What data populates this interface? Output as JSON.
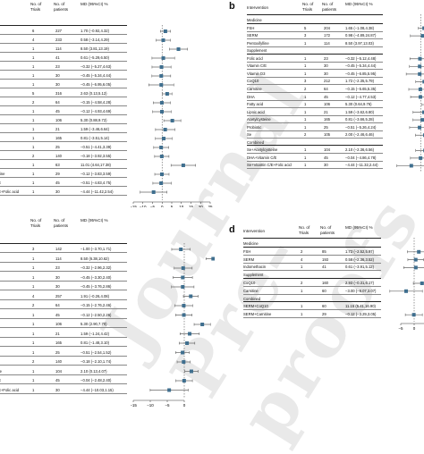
{
  "watermark": "Journal Pre-proofs",
  "panels": [
    {
      "letter": "",
      "headers": {
        "intervention": "",
        "trials": "No. of Trials",
        "patients": "No. of patients",
        "md": "MD (95%CI) %"
      },
      "rows": [
        {
          "name": "",
          "trials": "6",
          "patients": "227",
          "md": "1.70 (−0.92,4.32)",
          "est": 1.7,
          "lo": -0.92,
          "hi": 4.32
        },
        {
          "name": "",
          "trials": "4",
          "patients": "233",
          "md": "0.58 (−3.14,4.29)",
          "est": 0.58,
          "lo": -3.14,
          "hi": 4.29
        },
        {
          "name": "e",
          "trials": "1",
          "patients": "114",
          "md": "8.50 (3.81,13.19)",
          "est": 8.5,
          "lo": 3.81,
          "hi": 13.19
        },
        {
          "name": "m",
          "trials": "1",
          "patients": "41",
          "md": "0.61 (−5.29,6.50)",
          "est": 0.61,
          "lo": -5.29,
          "hi": 6.5
        },
        {
          "name": "",
          "trials": "1",
          "patients": "23",
          "md": "−0.32 (−5.27,4.63)",
          "est": -0.32,
          "lo": -5.27,
          "hi": 4.63
        },
        {
          "name": "",
          "trials": "1",
          "patients": "30",
          "md": "−0.45 (−5.34,4.44)",
          "est": -0.45,
          "lo": -5.34,
          "hi": 4.44
        },
        {
          "name": "",
          "trials": "1",
          "patients": "30",
          "md": "−0.45 (−6.95,6.05)",
          "est": -0.45,
          "lo": -6.95,
          "hi": 6.05
        },
        {
          "name": "",
          "trials": "5",
          "patients": "316",
          "md": "2.63 (0.13,5.12)",
          "est": 2.63,
          "lo": 0.13,
          "hi": 5.12
        },
        {
          "name": "",
          "trials": "2",
          "patients": "64",
          "md": "−0.15 (−4.58,4.28)",
          "est": -0.15,
          "lo": -4.58,
          "hi": 4.28
        },
        {
          "name": "",
          "trials": "1",
          "patients": "45",
          "md": "−0.12 (−4.93,4.69)",
          "est": -0.12,
          "lo": -4.93,
          "hi": 4.69
        },
        {
          "name": "",
          "trials": "1",
          "patients": "106",
          "md": "5.30 (0.88,9.72)",
          "est": 5.3,
          "lo": 0.88,
          "hi": 9.72
        },
        {
          "name": "",
          "trials": "1",
          "patients": "21",
          "md": "1.59 (−3.46,6.64)",
          "est": 1.59,
          "lo": -3.46,
          "hi": 6.64
        },
        {
          "name": "",
          "trials": "1",
          "patients": "165",
          "md": "0.81 (−3.51,5.14)",
          "est": 0.81,
          "lo": -3.51,
          "hi": 5.14
        },
        {
          "name": "ne",
          "trials": "1",
          "patients": "25",
          "md": "−0.51 (−4.41,3.39)",
          "est": -0.51,
          "lo": -4.41,
          "hi": 3.39
        },
        {
          "name": "",
          "trials": "2",
          "patients": "140",
          "md": "−0.18 (−3.92,3.55)",
          "est": -0.18,
          "lo": -3.92,
          "hi": 3.55
        },
        {
          "name": "10",
          "trials": "1",
          "patients": "63",
          "md": "11.01 (4.64,17.38)",
          "est": 11.01,
          "lo": 4.64,
          "hi": 17.38
        },
        {
          "name": "rnitine",
          "trials": "1",
          "patients": "29",
          "md": "−0.12 (−3.83,3.59)",
          "est": -0.12,
          "lo": -3.83,
          "hi": 3.59
        },
        {
          "name": "C/E",
          "trials": "1",
          "patients": "45",
          "md": "−0.51 (−4.83,4.75)",
          "est": -0.51,
          "lo": -4.83,
          "hi": 4.75
        },
        {
          "name": "C/E+Folic acid",
          "trials": "1",
          "patients": "30",
          "md": "−4.44 (−11.42,2.54)",
          "est": -4.44,
          "lo": -11.42,
          "hi": 2.54
        }
      ],
      "axis": {
        "ticks": [
          "−15",
          "−10",
          "−5",
          "0",
          "5",
          "10",
          "15",
          "20",
          "25"
        ],
        "min": -15,
        "max": 25
      }
    },
    {
      "letter": "b",
      "headers": {
        "intervention": "Intervention",
        "trials": "No. of Trials",
        "patients": "No. of patients",
        "md": "MD (95%CI) %"
      },
      "rows": [
        {
          "name": "Medicine",
          "section": true
        },
        {
          "name": "FSH",
          "trials": "5",
          "patients": "204",
          "md": "1.65 (−1.08,4.38)",
          "est": 1.65,
          "lo": -1.08,
          "hi": 4.38
        },
        {
          "name": "SERM",
          "trials": "3",
          "patients": "172",
          "md": "0.98 (−4.89,24.87)",
          "est": 0.98,
          "lo": -4.89,
          "hi": 24.87
        },
        {
          "name": "Pentoxifylline",
          "trials": "1",
          "patients": "114",
          "md": "8.50 (3.97,13.03)",
          "est": 8.5,
          "lo": 3.97,
          "hi": 13.03
        },
        {
          "name": "Supplement",
          "section": true
        },
        {
          "name": "Folic acid",
          "trials": "1",
          "patients": "23",
          "md": "−0.32 (−5.12,4.48)",
          "est": -0.32,
          "lo": -5.12,
          "hi": 4.48
        },
        {
          "name": "Vitamin C/E",
          "trials": "1",
          "patients": "30",
          "md": "−0.45 (−5.34,4.44)",
          "est": -0.45,
          "lo": -5.34,
          "hi": 4.44
        },
        {
          "name": "Vitamin D3",
          "trials": "1",
          "patients": "30",
          "md": "−0.45 (−6.85,5.95)",
          "est": -0.45,
          "lo": -6.85,
          "hi": 5.95
        },
        {
          "name": "CoQ10",
          "trials": "3",
          "patients": "212",
          "md": "1.72 (−2.35,5.79)",
          "est": 1.72,
          "lo": -2.35,
          "hi": 5.79
        },
        {
          "name": "Carnitine",
          "trials": "2",
          "patients": "64",
          "md": "−0.15 (−5.65,5.35)",
          "est": -0.15,
          "lo": -5.65,
          "hi": 5.35
        },
        {
          "name": "DHA",
          "trials": "1",
          "patients": "45",
          "md": "−0.12 (−4.77,4.53)",
          "est": -0.12,
          "lo": -4.77,
          "hi": 4.53
        },
        {
          "name": "Fatty acid",
          "trials": "1",
          "patients": "106",
          "md": "5.30 (0.64,9.76)",
          "est": 5.3,
          "lo": 0.64,
          "hi": 9.76
        },
        {
          "name": "Lipoic acid",
          "trials": "1",
          "patients": "21",
          "md": "1.59 (−3.62,6.80)",
          "est": 1.59,
          "lo": -3.62,
          "hi": 6.8
        },
        {
          "name": "Acetylcysteine",
          "trials": "1",
          "patients": "165",
          "md": "0.81 (−3.66,5.28)",
          "est": 0.81,
          "lo": -3.66,
          "hi": 5.28
        },
        {
          "name": "Probiotic",
          "trials": "1",
          "patients": "25",
          "md": "−0.51 (−5.26,4.24)",
          "est": -0.51,
          "lo": -5.26,
          "hi": 4.24
        },
        {
          "name": "Se",
          "trials": "2",
          "patients": "105",
          "md": "2.00 (−2.46,6.46)",
          "est": 2.0,
          "lo": -2.46,
          "hi": 6.46
        },
        {
          "name": "Combined",
          "section": true
        },
        {
          "name": "Se+Acetylcysteine",
          "trials": "1",
          "patients": "104",
          "md": "2.10 (−2.36,6.56)",
          "est": 2.1,
          "lo": -2.36,
          "hi": 6.56
        },
        {
          "name": "DHA+Vitamin C/E",
          "trials": "1",
          "patients": "45",
          "md": "−0.04 (−4.86,4.78)",
          "est": -0.04,
          "lo": -4.86,
          "hi": 4.78
        },
        {
          "name": "Se+Vitamin C/E+Folic acid",
          "trials": "1",
          "patients": "30",
          "md": "−4.44 (−11.32,2.44)",
          "est": -4.44,
          "lo": -11.32,
          "hi": 2.44
        }
      ],
      "axis": {
        "ticks": [],
        "min": -15,
        "max": 25
      }
    },
    {
      "letter": "",
      "headers": {
        "intervention": "",
        "trials": "No. of Trials",
        "patients": "No. of patients",
        "md": "MD (95%CI) %"
      },
      "rows": [
        {
          "name": "",
          "trials": "3",
          "patients": "142",
          "md": "−1.00 (−3.70,1.71)",
          "est": -1.0,
          "lo": -3.7,
          "hi": 1.71
        },
        {
          "name": "",
          "trials": "1",
          "patients": "114",
          "md": "8.50 (6.38,10.62)",
          "est": 8.5,
          "lo": 6.38,
          "hi": 10.62
        },
        {
          "name": "",
          "trials": "1",
          "patients": "23",
          "md": "−0.32 (−2.96,2.32)",
          "est": -0.32,
          "lo": -2.96,
          "hi": 2.32
        },
        {
          "name": "",
          "trials": "1",
          "patients": "30",
          "md": "−0.45 (−3.30,2.40)",
          "est": -0.45,
          "lo": -3.3,
          "hi": 2.4
        },
        {
          "name": "",
          "trials": "1",
          "patients": "30",
          "md": "−0.45 (−3.76,2.86)",
          "est": -0.45,
          "lo": -3.76,
          "hi": 2.86
        },
        {
          "name": "",
          "trials": "4",
          "patients": "257",
          "md": "1.91 (−0.26,4.08)",
          "est": 1.91,
          "lo": -0.26,
          "hi": 4.08
        },
        {
          "name": "",
          "trials": "2",
          "patients": "64",
          "md": "−0.15 (−2.76,2.46)",
          "est": -0.15,
          "lo": -2.76,
          "hi": 2.46
        },
        {
          "name": "",
          "trials": "1",
          "patients": "45",
          "md": "−0.12 (−2.50,2.26)",
          "est": -0.12,
          "lo": -2.5,
          "hi": 2.26
        },
        {
          "name": "",
          "trials": "1",
          "patients": "106",
          "md": "5.30 (2.90,7.70)",
          "est": 5.3,
          "lo": 2.9,
          "hi": 7.7
        },
        {
          "name": "",
          "trials": "1",
          "patients": "21",
          "md": "1.59 (−1.24,4.42)",
          "est": 1.59,
          "lo": -1.24,
          "hi": 4.42
        },
        {
          "name": "",
          "trials": "1",
          "patients": "165",
          "md": "0.81 (−1.48,3.10)",
          "est": 0.81,
          "lo": -1.48,
          "hi": 3.1
        },
        {
          "name": "",
          "trials": "1",
          "patients": "25",
          "md": "−0.51 (−2.54,1.52)",
          "est": -0.51,
          "lo": -2.54,
          "hi": 1.52
        },
        {
          "name": "",
          "trials": "2",
          "patients": "140",
          "md": "−0.18 (−2.10,1.74)",
          "est": -0.18,
          "lo": -2.1,
          "hi": 1.74
        },
        {
          "name": "eine",
          "trials": "1",
          "patients": "104",
          "md": "2.10 (0.13,4.07)",
          "est": 2.1,
          "lo": 0.13,
          "hi": 4.07
        },
        {
          "name": "C/E",
          "trials": "1",
          "patients": "45",
          "md": "−0.04 (−2.48,2.40)",
          "est": -0.04,
          "lo": -2.48,
          "hi": 2.4
        },
        {
          "name": "C/E+Folic acid",
          "trials": "1",
          "patients": "30",
          "md": "−4.44 (−10.03,1.15)",
          "est": -4.44,
          "lo": -10.03,
          "hi": 1.15
        }
      ],
      "axis": {
        "ticks": [
          "−15",
          "−10",
          "−5",
          "0"
        ],
        "min": -15,
        "max": 15
      }
    },
    {
      "letter": "d",
      "headers": {
        "intervention": "Intervention",
        "trials": "No. of Trials",
        "patients": "No. of patients",
        "md": "MD (95%CI) %"
      },
      "rows": [
        {
          "name": "Medicine",
          "section": true
        },
        {
          "name": "FSH",
          "trials": "2",
          "patients": "85",
          "md": "1.73 (−2.52,5.97)",
          "est": 1.73,
          "lo": -2.52,
          "hi": 5.97
        },
        {
          "name": "SERM",
          "trials": "4",
          "patients": "193",
          "md": "0.58 (−2.36,3.52)",
          "est": 0.58,
          "lo": -2.36,
          "hi": 3.52
        },
        {
          "name": "Indomethacin",
          "trials": "1",
          "patients": "41",
          "md": "0.61 (−3.91,5.12)",
          "est": 0.61,
          "lo": -3.91,
          "hi": 5.12
        },
        {
          "name": "Supplement",
          "section": true
        },
        {
          "name": "CoQ10",
          "trials": "2",
          "patients": "160",
          "md": "2.93 (−0.31,6.17)",
          "est": 2.93,
          "lo": -0.31,
          "hi": 6.17
        },
        {
          "name": "Carnitine",
          "trials": "1",
          "patients": "60",
          "md": "−3.00 (−9.07,3.07)",
          "est": -3.0,
          "lo": -9.07,
          "hi": 3.07
        },
        {
          "name": "Combined",
          "section": true
        },
        {
          "name": "SERM+CoQ10",
          "trials": "1",
          "patients": "60",
          "md": "11.15 (5.41,16.90)",
          "est": 11.15,
          "lo": 5.41,
          "hi": 16.9
        },
        {
          "name": "SERM+Carnitine",
          "trials": "1",
          "patients": "29",
          "md": "−0.12 (−3.29,3.05)",
          "est": -0.12,
          "lo": -3.29,
          "hi": 3.05
        }
      ],
      "axis": {
        "ticks": [
          "−5",
          "0",
          "5"
        ],
        "min": -10,
        "max": 18
      }
    }
  ]
}
